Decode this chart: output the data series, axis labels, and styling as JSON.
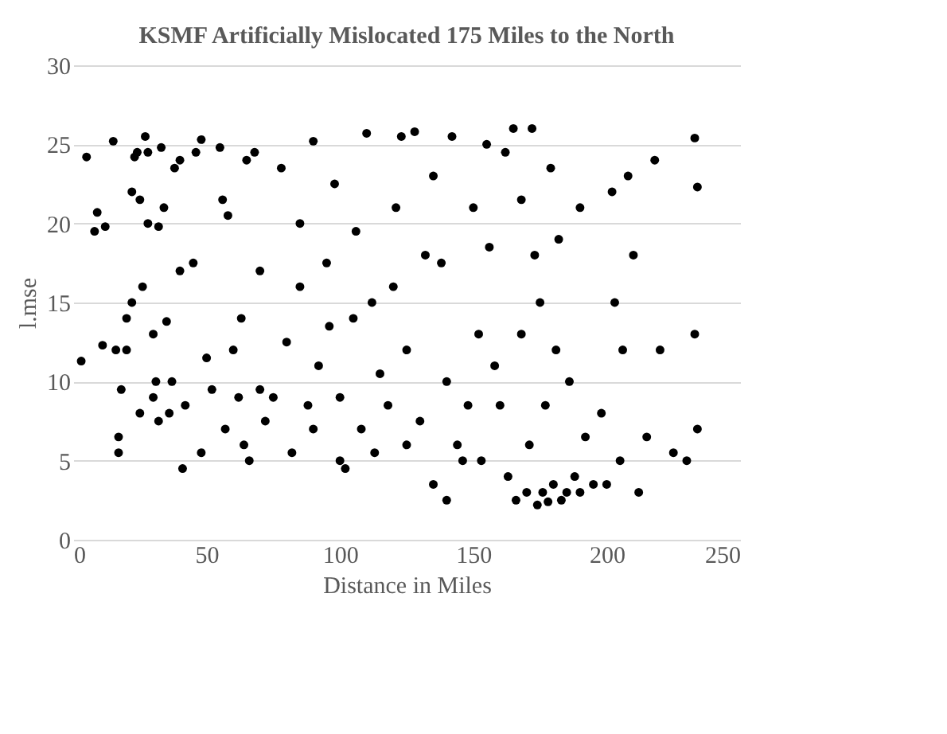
{
  "chart_data": {
    "type": "scatter",
    "title": "KSMF Artificially Mislocated 175 Miles to the North",
    "xlabel": "Distance in Miles",
    "ylabel": "l.mse",
    "x": [
      3,
      5,
      8,
      9,
      11,
      12,
      15,
      16,
      17,
      17,
      18,
      20,
      20,
      22,
      22,
      23,
      24,
      25,
      25,
      26,
      27,
      28,
      28,
      30,
      30,
      31,
      32,
      32,
      33,
      34,
      35,
      36,
      37,
      38,
      40,
      40,
      41,
      42,
      45,
      46,
      48,
      48,
      50,
      52,
      55,
      56,
      57,
      58,
      60,
      62,
      63,
      64,
      65,
      66,
      68,
      70,
      70,
      72,
      75,
      78,
      80,
      82,
      85,
      85,
      88,
      90,
      90,
      92,
      95,
      96,
      98,
      100,
      100,
      102,
      105,
      106,
      108,
      110,
      112,
      113,
      115,
      118,
      120,
      121,
      123,
      125,
      125,
      128,
      130,
      132,
      135,
      135,
      138,
      140,
      140,
      142,
      144,
      146,
      148,
      150,
      152,
      153,
      155,
      156,
      158,
      160,
      162,
      163,
      165,
      166,
      168,
      168,
      170,
      171,
      172,
      173,
      174,
      175,
      176,
      177,
      178,
      179,
      180,
      181,
      182,
      183,
      185,
      186,
      188,
      190,
      190,
      192,
      195,
      198,
      200,
      202,
      203,
      205,
      206,
      208,
      210,
      212,
      215,
      218,
      220,
      225,
      230,
      233,
      234,
      233,
      234
    ],
    "values": [
      11.3,
      24.2,
      19.5,
      20.7,
      12.3,
      19.8,
      25.2,
      12,
      5.5,
      6.5,
      9.5,
      12,
      14,
      15,
      22,
      24.2,
      24.5,
      21.5,
      8,
      16,
      25.5,
      24.5,
      20,
      13,
      9,
      10,
      7.5,
      19.8,
      24.8,
      21,
      13.8,
      8,
      10,
      23.5,
      24,
      17,
      4.5,
      8.5,
      17.5,
      24.5,
      25.3,
      5.5,
      11.5,
      9.5,
      24.8,
      21.5,
      7,
      20.5,
      12,
      9,
      14,
      6,
      24,
      5,
      24.5,
      17,
      9.5,
      7.5,
      9,
      23.5,
      12.5,
      5.5,
      20,
      16,
      8.5,
      25.2,
      7,
      11,
      17.5,
      13.5,
      22.5,
      9,
      5,
      4.5,
      14,
      19.5,
      7,
      25.7,
      15,
      5.5,
      10.5,
      8.5,
      16,
      21,
      25.5,
      12,
      6,
      25.8,
      7.5,
      18,
      23,
      3.5,
      17.5,
      2.5,
      10,
      25.5,
      6,
      5,
      8.5,
      21,
      13,
      5,
      25,
      18.5,
      11,
      8.5,
      24.5,
      4,
      26,
      2.5,
      21.5,
      13,
      3,
      6,
      26,
      18,
      2.2,
      15,
      3,
      8.5,
      2.4,
      23.5,
      3.5,
      12,
      19,
      2.5,
      3,
      10,
      4,
      21,
      3,
      6.5,
      3.5,
      8,
      3.5,
      22,
      15,
      5,
      12,
      23,
      18,
      3,
      6.5,
      24,
      12,
      5.5,
      5,
      25.4,
      22.3,
      13,
      7
    ],
    "color": "#000000",
    "marker": "circle",
    "xlim": [
      0,
      250
    ],
    "xticks": [
      0,
      50,
      100,
      150,
      200,
      250
    ],
    "ylim": [
      0,
      30
    ],
    "yticks": [
      0,
      5,
      10,
      15,
      20,
      25,
      30
    ],
    "grid": "y"
  }
}
